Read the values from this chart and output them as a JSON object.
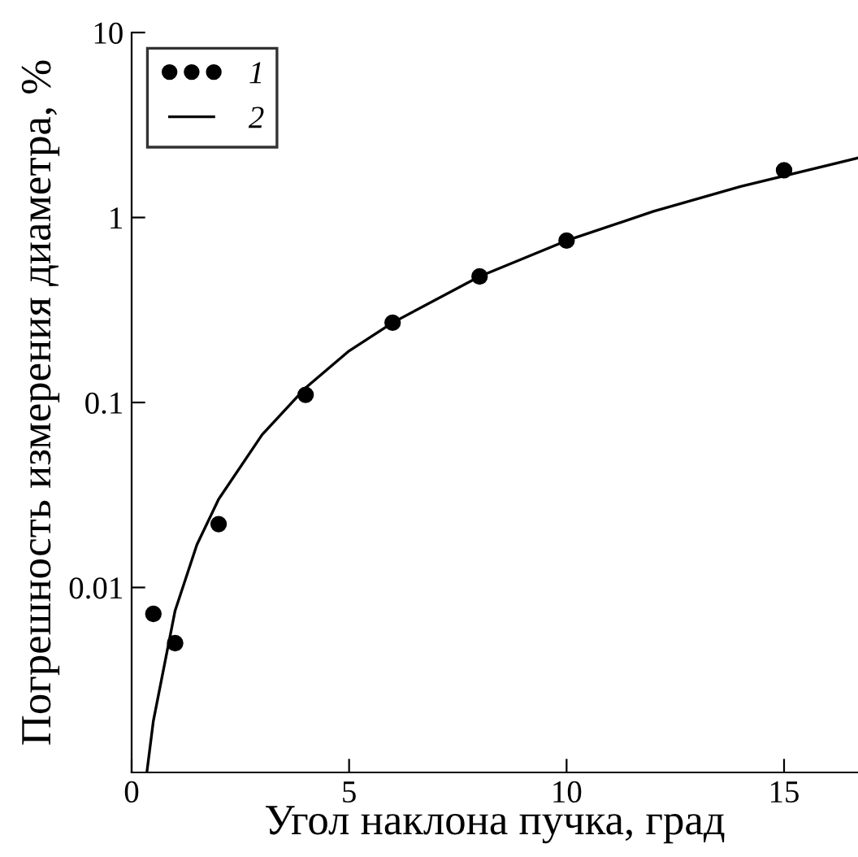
{
  "chart_data": {
    "type": "scatter",
    "xlabel": "Угол наклона пучка, град",
    "ylabel": "Погрешность измерения диаметра, %",
    "log": "y",
    "xlim": [
      0,
      16.7
    ],
    "ylim": [
      0.001,
      10
    ],
    "xticks": [
      0,
      5,
      10,
      15
    ],
    "yticks": [
      0.01,
      0.1,
      1,
      10
    ],
    "grid": false,
    "legend": "top left",
    "series": [
      {
        "name": "1",
        "marker": "circle",
        "color": "#000000",
        "x": [
          0.5,
          1,
          2,
          4,
          6,
          8,
          10,
          15
        ],
        "values": [
          0.0072,
          0.005,
          0.022,
          0.11,
          0.27,
          0.48,
          0.75,
          1.8
        ]
      },
      {
        "name": "2",
        "type": "line",
        "marker": "none",
        "line_style": "solid",
        "color": "#000000",
        "x": [
          0.35,
          0.5,
          1,
          1.5,
          2,
          3,
          4,
          5,
          6,
          8,
          10,
          12,
          14,
          16.7
        ],
        "values": [
          0.001,
          0.0019,
          0.0075,
          0.017,
          0.03,
          0.067,
          0.12,
          0.19,
          0.27,
          0.48,
          0.75,
          1.08,
          1.47,
          2.1
        ]
      }
    ]
  }
}
